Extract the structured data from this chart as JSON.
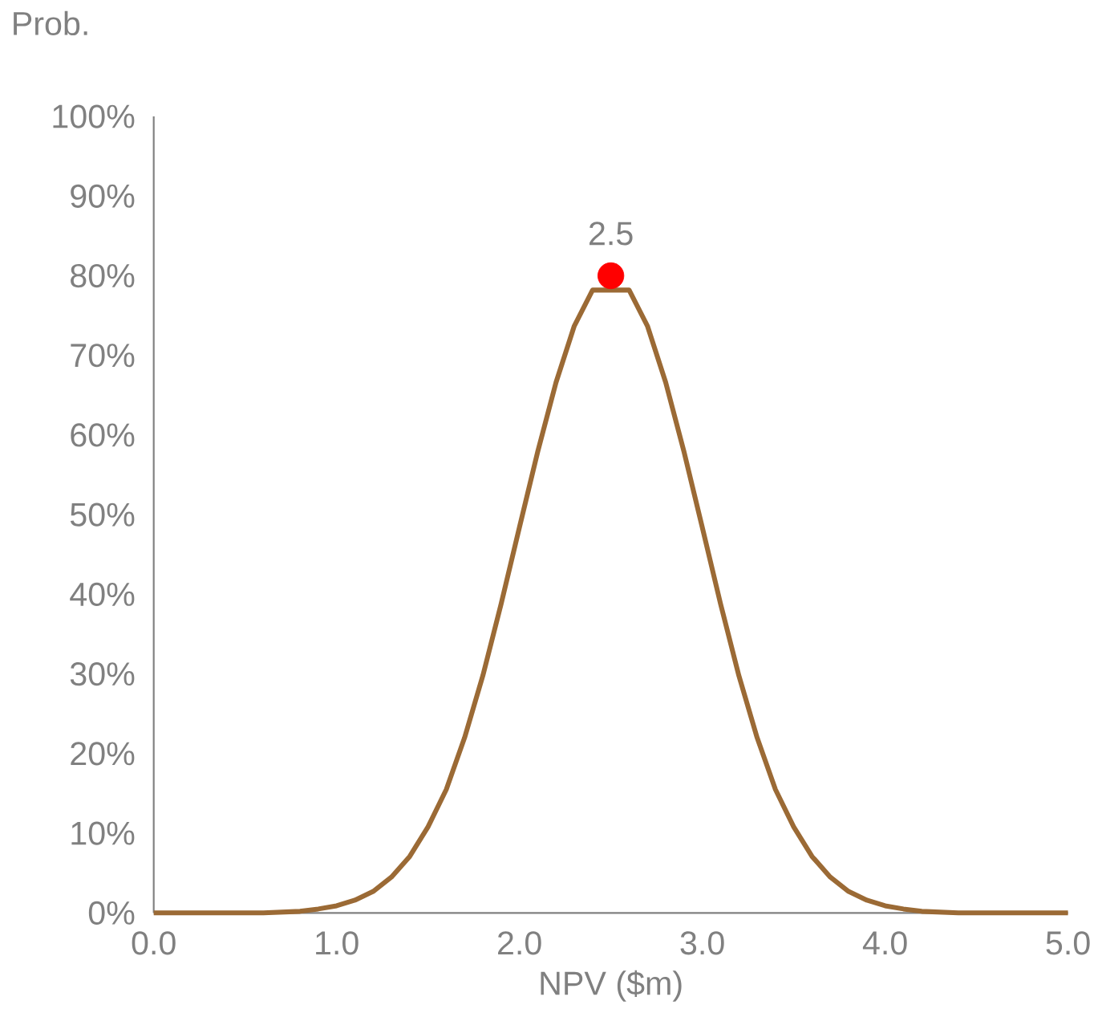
{
  "chart_data": {
    "type": "line",
    "xlabel": "NPV ($m)",
    "ylabel": "Prob.",
    "series": [
      {
        "color": "#9b6a35",
        "marker": "none",
        "x": [
          0.0,
          0.1,
          0.2,
          0.3,
          0.4,
          0.5,
          0.6,
          0.7,
          0.8,
          0.9,
          1.0,
          1.1,
          1.2,
          1.3,
          1.4,
          1.5,
          1.6,
          1.7,
          1.8,
          1.9,
          2.0,
          2.1,
          2.2,
          2.3,
          2.4,
          2.5,
          2.6,
          2.7,
          2.8,
          2.9,
          3.0,
          3.1,
          3.2,
          3.3,
          3.4,
          3.5,
          3.6,
          3.7,
          3.8,
          3.9,
          4.0,
          4.1,
          4.2,
          4.3,
          4.4,
          4.5,
          4.6,
          4.7,
          4.8,
          4.9,
          5.0
        ],
        "values": [
          0,
          0,
          0,
          0,
          0,
          0,
          0,
          0.1,
          0.2,
          0.5,
          0.9,
          1.6,
          2.7,
          4.5,
          7.1,
          10.8,
          15.5,
          22,
          29.8,
          38.8,
          48.4,
          57.9,
          66.6,
          73.7,
          78.2,
          null,
          78.2,
          73.7,
          66.6,
          57.9,
          48.4,
          38.8,
          29.8,
          22,
          15.5,
          10.8,
          7.1,
          4.5,
          2.7,
          1.6,
          0.9,
          0.5,
          0.2,
          0.1,
          0,
          0,
          0,
          0,
          0,
          0,
          0
        ]
      },
      {
        "type": "scatter",
        "color": "#ff0000",
        "marker": "circle",
        "x": [
          2.5
        ],
        "values": [
          80
        ]
      }
    ],
    "annotations": [
      {
        "text": "2.5",
        "x": 2.5,
        "y": 80
      }
    ],
    "xlim": [
      0,
      5
    ],
    "ylim": [
      0,
      100
    ],
    "xticks": [
      {
        "value": 0,
        "label": "0.0"
      },
      {
        "value": 1,
        "label": "1.0"
      },
      {
        "value": 2,
        "label": "2.0"
      },
      {
        "value": 3,
        "label": "3.0"
      },
      {
        "value": 4,
        "label": "4.0"
      },
      {
        "value": 5,
        "label": "5.0"
      }
    ],
    "yticks": [
      {
        "value": 0,
        "label": "0%"
      },
      {
        "value": 10,
        "label": "10%"
      },
      {
        "value": 20,
        "label": "20%"
      },
      {
        "value": 30,
        "label": "30%"
      },
      {
        "value": 40,
        "label": "40%"
      },
      {
        "value": 50,
        "label": "50%"
      },
      {
        "value": 60,
        "label": "60%"
      },
      {
        "value": 70,
        "label": "70%"
      },
      {
        "value": 80,
        "label": "80%"
      },
      {
        "value": 90,
        "label": "90%"
      },
      {
        "value": 100,
        "label": "100%"
      }
    ],
    "grid": false
  }
}
